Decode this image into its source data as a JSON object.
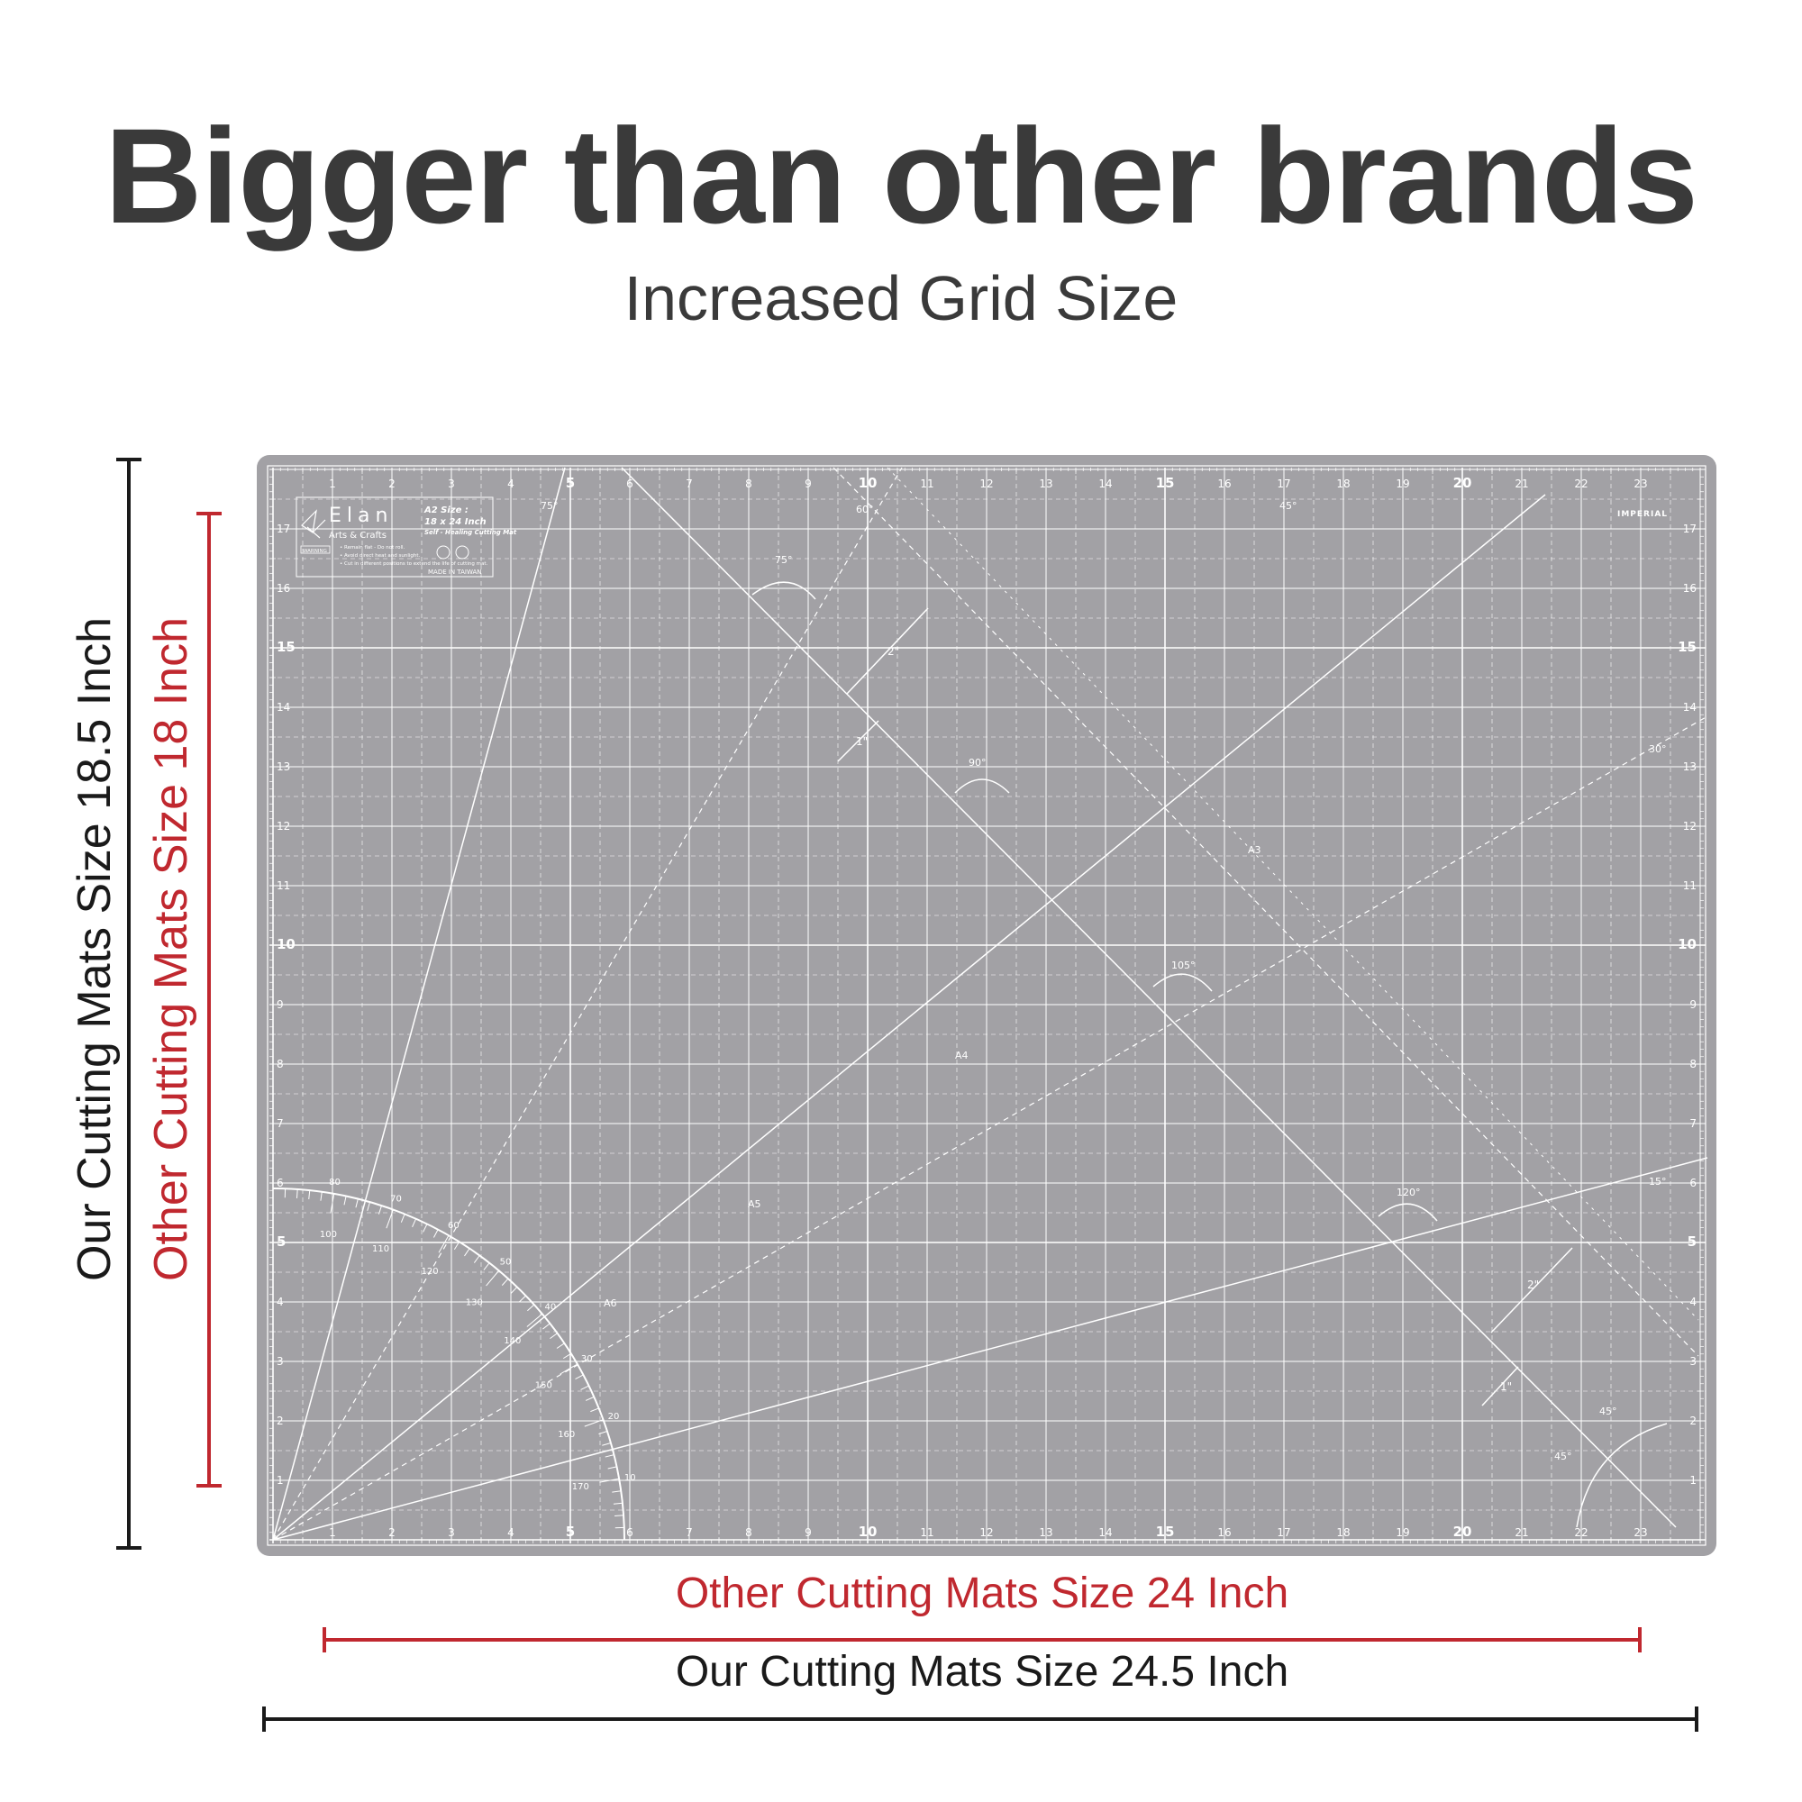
{
  "header": {
    "title": "Bigger than other brands",
    "subtitle": "Increased Grid Size"
  },
  "dimensions": {
    "our_height": "Our Cutting Mats Size 18.5 Inch",
    "other_height": "Other Cutting Mats Size 18 Inch",
    "other_width": "Other Cutting Mats Size 24 Inch",
    "our_width": "Our Cutting Mats Size 24.5 Inch"
  },
  "colors": {
    "headline": "#3a3a3a",
    "ours": "#1a1a1a",
    "others": "#c0282f",
    "mat": "#a2a1a5",
    "mat_lines": "#ffffff"
  },
  "mat": {
    "scale_label": "IMPERIAL",
    "brand_name": "Elan",
    "brand_sub": "Arts & Crafts",
    "size_label": "A2 Size :",
    "size_value": "18 x 24 Inch",
    "product": "Self - Healing Cutting Mat",
    "warning_tag": "WARNING",
    "warning_1": "• Remain flat - Do not roll.",
    "warning_2": "• Avoid direct heat and sunlight.",
    "warning_3": "• Cut in different positions to extend the life of cutting mat.",
    "made_in": "MADE IN TAIWAN",
    "logo_icon": "origami-bird-icon",
    "x_ticks": [
      "1",
      "2",
      "3",
      "4",
      "5",
      "6",
      "7",
      "8",
      "9",
      "10",
      "11",
      "12",
      "13",
      "14",
      "15",
      "16",
      "17",
      "18",
      "19",
      "20",
      "21",
      "22",
      "23"
    ],
    "y_ticks": [
      "1",
      "2",
      "3",
      "4",
      "5",
      "6",
      "7",
      "8",
      "9",
      "10",
      "11",
      "12",
      "13",
      "14",
      "15",
      "16",
      "17"
    ],
    "paper_labels": [
      "A3",
      "A4",
      "A5",
      "A6"
    ],
    "angle_labels": [
      "75°",
      "60°",
      "45°",
      "30°",
      "15°",
      "75°",
      "90°",
      "105°",
      "120°",
      "45°",
      "45°"
    ],
    "spacing_labels": [
      "2\"",
      "1\"",
      "2\"",
      "1\""
    ],
    "protractor_labels": [
      "10",
      "20",
      "30",
      "40",
      "50",
      "60",
      "70",
      "80",
      "100",
      "110",
      "120",
      "130",
      "140",
      "150",
      "160",
      "170"
    ]
  }
}
